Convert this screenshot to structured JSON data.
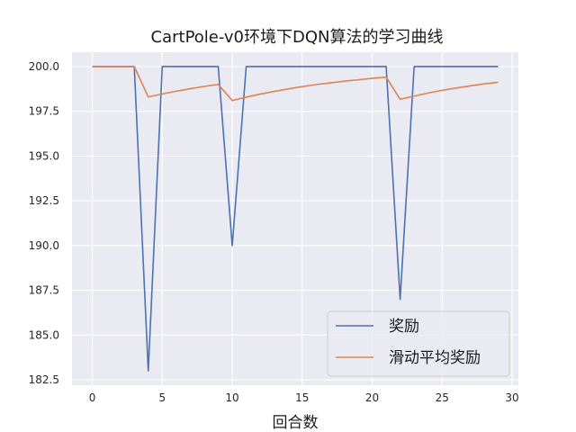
{
  "chart_data": {
    "type": "line",
    "title": "CartPole-v0环境下DQN算法的学习曲线",
    "xlabel": "回合数",
    "ylabel": "",
    "xlim": [
      -1.45,
      30.45
    ],
    "ylim": [
      182.2,
      200.8
    ],
    "x_ticks": [
      0,
      5,
      10,
      15,
      20,
      25,
      30
    ],
    "x_tick_labels": [
      "0",
      "5",
      "10",
      "15",
      "20",
      "25",
      "30"
    ],
    "y_ticks": [
      182.5,
      185.0,
      187.5,
      190.0,
      192.5,
      195.0,
      197.5,
      200.0
    ],
    "y_tick_labels": [
      "182.5",
      "185.0",
      "187.5",
      "190.0",
      "192.5",
      "195.0",
      "197.5",
      "200.0"
    ],
    "grid": true,
    "legend_position": "lower-right",
    "x": [
      0,
      1,
      2,
      3,
      4,
      5,
      6,
      7,
      8,
      9,
      10,
      11,
      12,
      13,
      14,
      15,
      16,
      17,
      18,
      19,
      20,
      21,
      22,
      23,
      24,
      25,
      26,
      27,
      28,
      29
    ],
    "series": [
      {
        "name": "奖励",
        "color": "#4c72b0",
        "values": [
          200,
          200,
          200,
          200,
          183,
          200,
          200,
          200,
          200,
          200,
          190,
          200,
          200,
          200,
          200,
          200,
          200,
          200,
          200,
          200,
          200,
          200,
          187,
          200,
          200,
          200,
          200,
          200,
          200,
          200
        ]
      },
      {
        "name": "滑动平均奖励",
        "color": "#dd8452",
        "values": [
          200,
          200,
          200,
          200,
          198.3,
          198.47,
          198.62,
          198.76,
          198.89,
          199.0,
          198.1,
          198.29,
          198.46,
          198.61,
          198.75,
          198.88,
          198.99,
          199.09,
          199.18,
          199.26,
          199.34,
          199.41,
          198.17,
          198.35,
          198.52,
          198.67,
          198.8,
          198.92,
          199.03,
          199.12
        ]
      }
    ]
  }
}
